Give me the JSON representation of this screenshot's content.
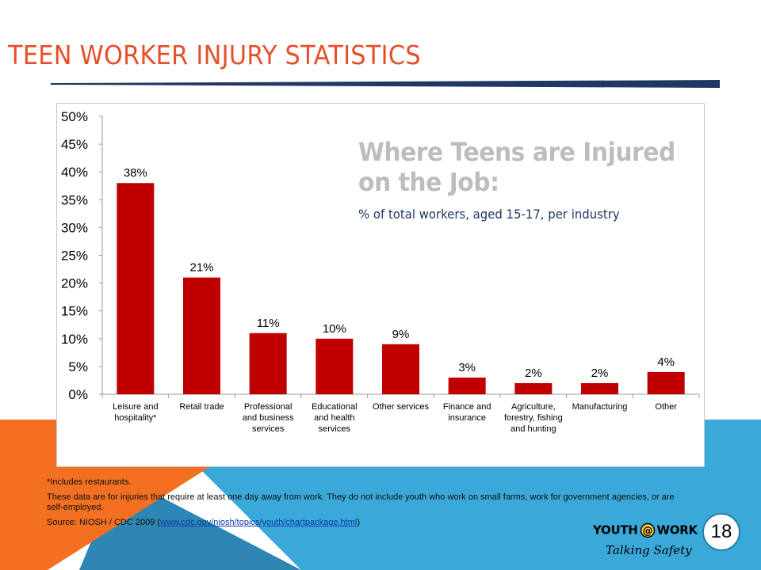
{
  "slide": {
    "title": "TEEN WORKER INJURY STATISTICS",
    "page_number": "18"
  },
  "colors": {
    "title": "#e5502a",
    "rule": "#1f3864",
    "bar": "#c00000",
    "background_orange": "#f36f21",
    "background_blue": "#3aa8d8",
    "subheading": "#1f3864",
    "heading": "#bdbdbd"
  },
  "chart_data": {
    "type": "bar",
    "title": "Where Teens are Injured on the Job:",
    "subtitle": "% of total workers, aged 15-17, per industry",
    "categories": [
      "Leisure and hospitality*",
      "Retail trade",
      "Professional and business services",
      "Educational and health services",
      "Other services",
      "Finance and insurance",
      "Agriculture, forestry, fishing and hunting",
      "Manufacturing",
      "Other"
    ],
    "category_lines": [
      [
        "Leisure and",
        "hospitality*"
      ],
      [
        "Retail trade"
      ],
      [
        "Professional",
        "and business",
        "services"
      ],
      [
        "Educational",
        "and health",
        "services"
      ],
      [
        "Other services"
      ],
      [
        "Finance and",
        "insurance"
      ],
      [
        "Agriculture,",
        "forestry, fishing",
        "and hunting"
      ],
      [
        "Manufacturing"
      ],
      [
        "Other"
      ]
    ],
    "values": [
      38,
      21,
      11,
      10,
      9,
      3,
      2,
      2,
      4
    ],
    "data_labels": [
      "38%",
      "21%",
      "11%",
      "10%",
      "9%",
      "3%",
      "2%",
      "2%",
      "4%"
    ],
    "ylim": [
      0,
      50
    ],
    "yticks": [
      0,
      5,
      10,
      15,
      20,
      25,
      30,
      35,
      40,
      45,
      50
    ],
    "ytick_labels": [
      "0%",
      "5%",
      "10%",
      "15%",
      "20%",
      "25%",
      "30%",
      "35%",
      "40%",
      "45%",
      "50%"
    ],
    "xlabel": "",
    "ylabel": "",
    "grid": false,
    "legend": "none"
  },
  "footnotes": {
    "note1": "*Includes restaurants.",
    "note2": "These data are for injuries that require at least one day away from work. They do not include youth who work on small farms, work for government agencies, or are self-employed.",
    "source_prefix": "Source: NIOSH / CDC 2009  (",
    "source_link": "www.cdc.gov/niosh/topics/youth/chartpackage.html",
    "source_suffix": ")"
  },
  "logo": {
    "top_left": "YOUTH",
    "top_right": "WORK",
    "tagline": "Talking Safety"
  }
}
